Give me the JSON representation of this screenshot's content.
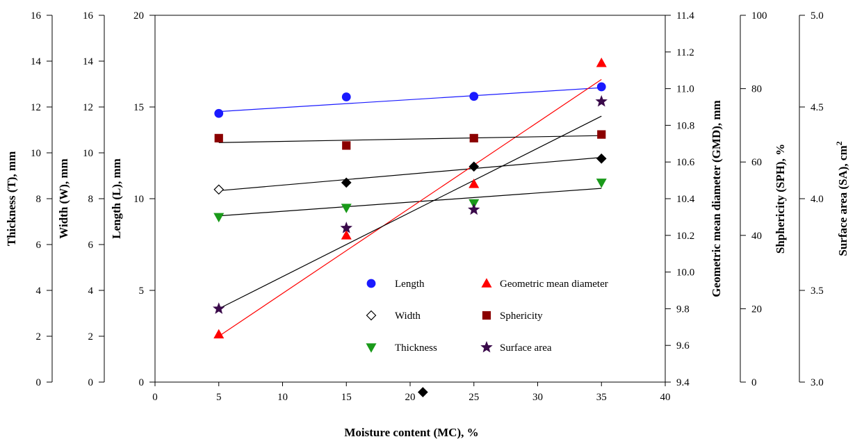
{
  "chart_data": {
    "type": "scatter",
    "title": "",
    "xlabel": "Moisture content (MC), %",
    "xlim": [
      0,
      40
    ],
    "xticks": [
      "0",
      "5",
      "10",
      "15",
      "20",
      "25",
      "30",
      "35",
      "40"
    ],
    "grid": false,
    "legend_position": "lower-right inside plot",
    "axes": {
      "thickness": {
        "label": "Thickness (T), mm",
        "side": "left-outer-1",
        "range": [
          0,
          16
        ],
        "ticks": [
          "0",
          "2",
          "4",
          "6",
          "8",
          "10",
          "12",
          "14",
          "16"
        ]
      },
      "width": {
        "label": "Width (W), mm",
        "side": "left-outer-2",
        "range": [
          0,
          16
        ],
        "ticks": [
          "0",
          "2",
          "4",
          "6",
          "8",
          "10",
          "12",
          "14",
          "16"
        ]
      },
      "length": {
        "label": "Length (L), mm",
        "side": "left-main",
        "range": [
          0,
          20
        ],
        "ticks": [
          "0",
          "5",
          "10",
          "15",
          "20"
        ]
      },
      "gmd": {
        "label": "Geometric mean diameter (GMD), mm",
        "side": "right-1",
        "range": [
          9.4,
          11.4
        ],
        "ticks": [
          "9.4",
          "9.6",
          "9.8",
          "10.0",
          "10.2",
          "10.4",
          "10.6",
          "10.8",
          "11.0",
          "11.2",
          "11.4"
        ]
      },
      "sph": {
        "label": "Shphericity (SPH), %",
        "side": "right-2",
        "range": [
          0,
          100
        ],
        "ticks": [
          "0",
          "20",
          "40",
          "60",
          "80",
          "100"
        ]
      },
      "sa": {
        "label": "Surface area (SA), cm",
        "label_sup": "2",
        "side": "right-3",
        "range": [
          3.0,
          5.0
        ],
        "ticks": [
          "3.0",
          "3.5",
          "4.0",
          "4.5",
          "5.0"
        ]
      }
    },
    "series": [
      {
        "name": "Length",
        "axis": "length",
        "marker": "circle",
        "color": "#1a1aff",
        "line_color": "#1a1aff",
        "x": [
          5,
          15,
          25,
          35
        ],
        "y": [
          14.65,
          15.55,
          15.58,
          16.1
        ],
        "trend": [
          [
            5,
            14.75
          ],
          [
            35,
            16.05
          ]
        ]
      },
      {
        "name": "Width",
        "axis": "width",
        "marker": "diamond",
        "color": "#000000",
        "line_color": "#000000",
        "x": [
          5,
          15,
          25,
          35
        ],
        "y": [
          8.4,
          8.7,
          9.4,
          9.75
        ],
        "filled": [
          false,
          true,
          true,
          true
        ],
        "trend": [
          [
            5,
            8.35
          ],
          [
            35,
            9.8
          ]
        ]
      },
      {
        "name": "Thickness",
        "axis": "thickness",
        "marker": "triangle-down",
        "color": "#1a9a1a",
        "line_color": "#000000",
        "x": [
          5,
          15,
          25,
          35
        ],
        "y": [
          7.2,
          7.6,
          7.8,
          8.7
        ],
        "trend": [
          [
            5,
            7.25
          ],
          [
            35,
            8.45
          ]
        ]
      },
      {
        "name": "Geometric mean diameter",
        "axis": "gmd",
        "marker": "triangle-up",
        "color": "#ff0000",
        "line_color": "#ff0000",
        "x": [
          5,
          15,
          25,
          35
        ],
        "y": [
          9.66,
          10.2,
          10.48,
          11.14
        ],
        "trend": [
          [
            5,
            9.65
          ],
          [
            35,
            11.05
          ]
        ]
      },
      {
        "name": "Sphericity",
        "axis": "sph",
        "marker": "square",
        "color": "#8b0000",
        "line_color": "#000000",
        "x": [
          5,
          15,
          25,
          35
        ],
        "y": [
          66.5,
          64.5,
          66.5,
          67.5
        ],
        "trend": [
          [
            5,
            65.3
          ],
          [
            35,
            67.2
          ]
        ]
      },
      {
        "name": "Surface area",
        "axis": "sa",
        "marker": "star",
        "color": "#3a0a4a",
        "line_color": "#000000",
        "x": [
          5,
          15,
          25,
          35
        ],
        "y": [
          3.4,
          3.84,
          3.94,
          4.53
        ],
        "trend": [
          [
            5,
            3.4
          ],
          [
            35,
            4.45
          ]
        ]
      }
    ],
    "stray_points": [
      {
        "axis": "length",
        "marker": "diamond",
        "color": "#000000",
        "x": 21,
        "y": -0.55
      }
    ]
  }
}
